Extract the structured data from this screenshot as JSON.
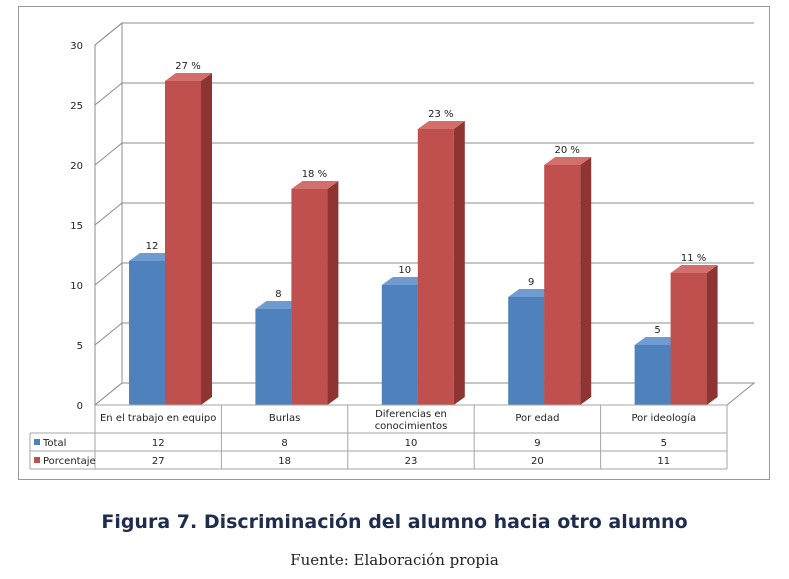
{
  "figure": {
    "caption": "Figura 7. Discriminación del alumno hacia otro alumno",
    "source": "Fuente: Elaboración propia"
  },
  "chart_data": {
    "type": "bar",
    "categories": [
      "En el trabajo en equipo",
      "Burlas",
      "Diferencias en conocimientos",
      "Por edad",
      "Por ideología"
    ],
    "category_lines": [
      [
        "En el trabajo en equipo"
      ],
      [
        "Burlas"
      ],
      [
        "Diferencias en",
        "conocimientos"
      ],
      [
        "Por edad"
      ],
      [
        "Por ideología"
      ]
    ],
    "series": [
      {
        "name": "Total",
        "values": [
          12,
          8,
          10,
          9,
          5
        ],
        "labels": [
          "12",
          "8",
          "10",
          "9",
          "5"
        ],
        "color": "#4f81bd",
        "side": "#3a6493",
        "top": "#6f9bd0"
      },
      {
        "name": "Porcentaje",
        "values": [
          27,
          18,
          23,
          20,
          11
        ],
        "labels": [
          "27 %",
          "18 %",
          "23 %",
          "20 %",
          "11 %"
        ],
        "color": "#c0504d",
        "side": "#8e3533",
        "top": "#d26e6b"
      }
    ],
    "yticks": [
      "0",
      "5",
      "10",
      "15",
      "20",
      "25",
      "30"
    ],
    "ylim": [
      0,
      30
    ],
    "grid": true,
    "data_table": true,
    "legend_position": "data-table-left"
  }
}
